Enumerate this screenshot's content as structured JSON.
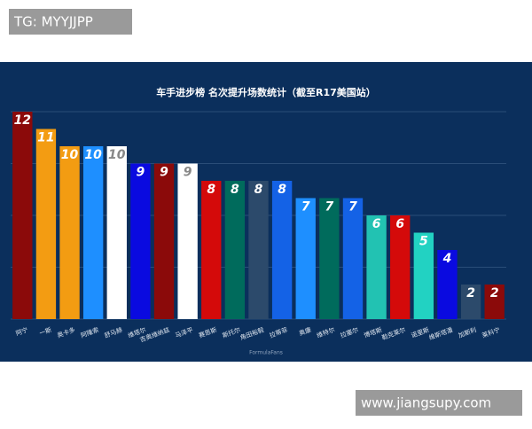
{
  "watermark_top": "TG: MYYJJPP",
  "watermark_bottom": "www.jiangsupy.com",
  "chart_data": {
    "type": "bar",
    "title": "车手进步榜 名次提升场数统计（截至R17美国站）",
    "footer": "FormulaFans",
    "categories": [
      "阿宁",
      "一斯",
      "奥卡多",
      "阿隆索",
      "舒马赫",
      "维塔尔",
      "吉奥维纳兹",
      "马泽平",
      "赛恩斯",
      "斯托尔",
      "角田裕毅",
      "拉蒂菲",
      "奥康",
      "维特尔",
      "拉塞尔",
      "博塔斯",
      "勒克莱尔",
      "诺里斯",
      "维斯塔潘",
      "加斯利",
      "莱科宁"
    ],
    "values": [
      12,
      11,
      10,
      10,
      10,
      9,
      9,
      9,
      8,
      8,
      8,
      8,
      7,
      7,
      7,
      6,
      6,
      5,
      4,
      2,
      2
    ],
    "colors": [
      "#8b0a0a",
      "#f39c12",
      "#f39c12",
      "#1e8fff",
      "#ffffff",
      "#0a0ae0",
      "#8b0a0a",
      "#ffffff",
      "#d40a0a",
      "#006b5c",
      "#2c4a6b",
      "#1462e6",
      "#1e8fff",
      "#006b5c",
      "#1462e6",
      "#22c2b2",
      "#d40a0a",
      "#22d2c2",
      "#0a0ae0",
      "#2c4a6b",
      "#8b0a0a"
    ],
    "ylim": [
      0,
      12
    ],
    "yticks": [
      0,
      3,
      6,
      9,
      12
    ],
    "grid": true
  }
}
